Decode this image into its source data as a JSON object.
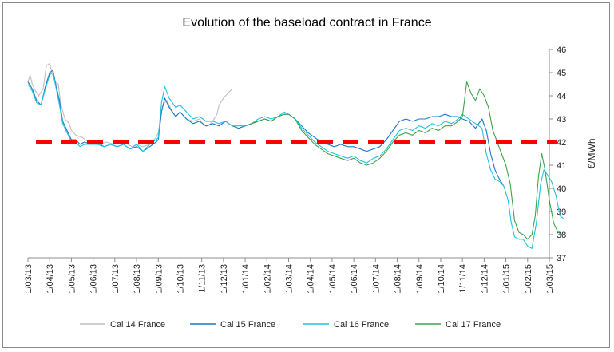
{
  "chart_data": {
    "type": "line",
    "title": "Evolution of the baseload contract in France",
    "ylabel": "€/MWh",
    "ylim": [
      37,
      46
    ],
    "yticks": [
      37,
      38,
      39,
      40,
      41,
      42,
      43,
      44,
      45,
      46
    ],
    "y_axis_side": "right",
    "grid": false,
    "legend_position": "bottom",
    "x_categories": [
      "1/03/13",
      "1/04/13",
      "1/05/13",
      "1/06/13",
      "1/07/13",
      "1/08/13",
      "1/09/13",
      "1/10/13",
      "1/11/13",
      "1/12/13",
      "1/01/14",
      "1/02/14",
      "1/03/14",
      "1/04/14",
      "1/05/14",
      "1/06/14",
      "1/07/14",
      "1/08/14",
      "1/09/14",
      "1/10/14",
      "1/11/14",
      "1/12/14",
      "1/01/15",
      "1/02/15",
      "1/03/15"
    ],
    "reference_line": {
      "y": 42,
      "color": "#ff0000",
      "style": "dashed"
    },
    "series": [
      {
        "name": "Cal 14 France",
        "color": "#bfbfbf",
        "points": [
          [
            0,
            44.6
          ],
          [
            0.1,
            44.9
          ],
          [
            0.2,
            44.5
          ],
          [
            0.35,
            44.2
          ],
          [
            0.5,
            44.0
          ],
          [
            0.7,
            44.3
          ],
          [
            0.85,
            45.3
          ],
          [
            1.0,
            45.4
          ],
          [
            1.1,
            45.0
          ],
          [
            1.25,
            44.6
          ],
          [
            1.4,
            44.5
          ],
          [
            1.5,
            43.7
          ],
          [
            1.7,
            43.0
          ],
          [
            1.9,
            42.8
          ],
          [
            2.0,
            42.5
          ],
          [
            2.2,
            42.3
          ],
          [
            2.5,
            42.2
          ],
          [
            2.8,
            42.0
          ],
          [
            3.0,
            42.1
          ],
          [
            3.3,
            41.9
          ],
          [
            3.6,
            42.0
          ],
          [
            4.0,
            41.9
          ],
          [
            4.4,
            42.0
          ],
          [
            4.8,
            41.8
          ],
          [
            5.0,
            41.9
          ],
          [
            5.3,
            41.8
          ],
          [
            5.6,
            41.9
          ],
          [
            5.9,
            42.2
          ],
          [
            6.0,
            42.4
          ],
          [
            6.2,
            43.6
          ],
          [
            6.4,
            43.8
          ],
          [
            6.6,
            43.4
          ],
          [
            6.8,
            43.1
          ],
          [
            7.0,
            43.3
          ],
          [
            7.3,
            43.0
          ],
          [
            7.6,
            42.9
          ],
          [
            7.9,
            43.0
          ],
          [
            8.1,
            42.7
          ],
          [
            8.3,
            42.7
          ],
          [
            8.5,
            42.9
          ],
          [
            8.7,
            43.2
          ],
          [
            8.8,
            43.6
          ],
          [
            9.0,
            43.9
          ],
          [
            9.2,
            44.1
          ],
          [
            9.4,
            44.3
          ]
        ]
      },
      {
        "name": "Cal 15 France",
        "color": "#1f77c4",
        "points": [
          [
            0,
            44.6
          ],
          [
            0.2,
            44.3
          ],
          [
            0.4,
            43.8
          ],
          [
            0.6,
            43.6
          ],
          [
            0.8,
            44.4
          ],
          [
            1.0,
            45.0
          ],
          [
            1.15,
            45.1
          ],
          [
            1.3,
            44.4
          ],
          [
            1.45,
            43.8
          ],
          [
            1.6,
            42.9
          ],
          [
            1.8,
            42.5
          ],
          [
            2.0,
            42.1
          ],
          [
            2.2,
            42.1
          ],
          [
            2.4,
            41.9
          ],
          [
            2.6,
            42.0
          ],
          [
            2.9,
            41.9
          ],
          [
            3.2,
            42.0
          ],
          [
            3.5,
            41.8
          ],
          [
            3.8,
            41.9
          ],
          [
            4.1,
            41.8
          ],
          [
            4.4,
            41.9
          ],
          [
            4.7,
            41.7
          ],
          [
            5.0,
            41.8
          ],
          [
            5.3,
            41.6
          ],
          [
            5.6,
            41.8
          ],
          [
            5.9,
            42.0
          ],
          [
            6.0,
            42.1
          ],
          [
            6.15,
            43.3
          ],
          [
            6.3,
            43.9
          ],
          [
            6.5,
            43.5
          ],
          [
            6.8,
            43.1
          ],
          [
            7.0,
            43.3
          ],
          [
            7.3,
            43.0
          ],
          [
            7.6,
            42.8
          ],
          [
            7.9,
            42.9
          ],
          [
            8.2,
            42.7
          ],
          [
            8.5,
            42.8
          ],
          [
            8.8,
            42.7
          ],
          [
            9.1,
            42.9
          ],
          [
            9.4,
            42.7
          ],
          [
            9.7,
            42.6
          ],
          [
            10.0,
            42.7
          ],
          [
            10.3,
            42.8
          ],
          [
            10.6,
            42.9
          ],
          [
            10.9,
            43.0
          ],
          [
            11.2,
            42.9
          ],
          [
            11.5,
            43.1
          ],
          [
            11.8,
            43.2
          ],
          [
            12.0,
            43.2
          ],
          [
            12.3,
            43.0
          ],
          [
            12.6,
            42.7
          ],
          [
            12.9,
            42.4
          ],
          [
            13.2,
            42.2
          ],
          [
            13.5,
            42.0
          ],
          [
            13.8,
            41.9
          ],
          [
            14.1,
            41.8
          ],
          [
            14.4,
            41.9
          ],
          [
            14.7,
            41.8
          ],
          [
            15.0,
            41.8
          ],
          [
            15.3,
            41.7
          ],
          [
            15.6,
            41.6
          ],
          [
            15.9,
            41.7
          ],
          [
            16.2,
            41.8
          ],
          [
            16.5,
            42.1
          ],
          [
            16.8,
            42.5
          ],
          [
            17.1,
            42.9
          ],
          [
            17.4,
            43.0
          ],
          [
            17.7,
            42.9
          ],
          [
            18.0,
            43.0
          ],
          [
            18.3,
            43.0
          ],
          [
            18.6,
            43.1
          ],
          [
            18.9,
            43.1
          ],
          [
            19.2,
            43.2
          ],
          [
            19.5,
            43.1
          ],
          [
            19.8,
            43.1
          ],
          [
            20.0,
            43.0
          ],
          [
            20.3,
            42.9
          ],
          [
            20.6,
            42.6
          ],
          [
            20.9,
            43.0
          ],
          [
            21.1,
            42.5
          ],
          [
            21.3,
            41.5
          ],
          [
            21.5,
            40.8
          ],
          [
            21.7,
            40.4
          ],
          [
            21.9,
            40.1
          ]
        ]
      },
      {
        "name": "Cal 16 France",
        "color": "#1fc3e0",
        "points": [
          [
            0,
            44.5
          ],
          [
            0.2,
            44.2
          ],
          [
            0.4,
            43.7
          ],
          [
            0.6,
            43.6
          ],
          [
            0.8,
            44.3
          ],
          [
            1.0,
            44.9
          ],
          [
            1.15,
            45.0
          ],
          [
            1.3,
            44.3
          ],
          [
            1.45,
            43.6
          ],
          [
            1.6,
            42.8
          ],
          [
            1.8,
            42.4
          ],
          [
            2.0,
            42.0
          ],
          [
            2.2,
            42.0
          ],
          [
            2.4,
            41.8
          ],
          [
            2.6,
            41.9
          ],
          [
            2.9,
            41.9
          ],
          [
            3.2,
            41.9
          ],
          [
            3.5,
            41.8
          ],
          [
            3.8,
            41.9
          ],
          [
            4.1,
            41.8
          ],
          [
            4.4,
            41.9
          ],
          [
            4.7,
            41.7
          ],
          [
            5.0,
            41.9
          ],
          [
            5.3,
            41.6
          ],
          [
            5.6,
            41.9
          ],
          [
            5.9,
            42.1
          ],
          [
            6.0,
            42.2
          ],
          [
            6.15,
            43.7
          ],
          [
            6.3,
            44.4
          ],
          [
            6.5,
            43.9
          ],
          [
            6.8,
            43.5
          ],
          [
            7.0,
            43.6
          ],
          [
            7.3,
            43.3
          ],
          [
            7.6,
            43.0
          ],
          [
            7.9,
            43.1
          ],
          [
            8.2,
            42.9
          ],
          [
            8.5,
            42.9
          ],
          [
            8.8,
            42.8
          ],
          [
            9.1,
            42.9
          ],
          [
            9.4,
            42.7
          ],
          [
            9.7,
            42.7
          ],
          [
            10.0,
            42.7
          ],
          [
            10.3,
            42.8
          ],
          [
            10.6,
            43.0
          ],
          [
            10.9,
            43.1
          ],
          [
            11.2,
            43.0
          ],
          [
            11.5,
            43.1
          ],
          [
            11.8,
            43.3
          ],
          [
            12.0,
            43.2
          ],
          [
            12.3,
            43.0
          ],
          [
            12.6,
            42.6
          ],
          [
            12.9,
            42.3
          ],
          [
            13.2,
            42.0
          ],
          [
            13.5,
            41.8
          ],
          [
            13.8,
            41.6
          ],
          [
            14.1,
            41.5
          ],
          [
            14.4,
            41.4
          ],
          [
            14.7,
            41.3
          ],
          [
            15.0,
            41.4
          ],
          [
            15.3,
            41.2
          ],
          [
            15.6,
            41.1
          ],
          [
            15.9,
            41.3
          ],
          [
            16.2,
            41.4
          ],
          [
            16.5,
            41.7
          ],
          [
            16.8,
            42.1
          ],
          [
            17.1,
            42.5
          ],
          [
            17.4,
            42.6
          ],
          [
            17.7,
            42.5
          ],
          [
            18.0,
            42.7
          ],
          [
            18.3,
            42.6
          ],
          [
            18.6,
            42.8
          ],
          [
            18.9,
            42.7
          ],
          [
            19.2,
            42.9
          ],
          [
            19.5,
            42.8
          ],
          [
            19.8,
            43.0
          ],
          [
            20.0,
            43.2
          ],
          [
            20.3,
            43.0
          ],
          [
            20.6,
            42.8
          ],
          [
            20.9,
            42.6
          ],
          [
            21.1,
            41.5
          ],
          [
            21.3,
            40.8
          ],
          [
            21.5,
            40.4
          ],
          [
            21.7,
            40.3
          ],
          [
            21.9,
            40.1
          ],
          [
            22.1,
            39.5
          ],
          [
            22.25,
            38.5
          ],
          [
            22.4,
            37.9
          ],
          [
            22.6,
            37.8
          ],
          [
            22.8,
            37.8
          ],
          [
            23.0,
            37.5
          ],
          [
            23.2,
            37.4
          ],
          [
            23.4,
            38.5
          ],
          [
            23.6,
            40.2
          ],
          [
            23.75,
            40.8
          ],
          [
            23.9,
            40.6
          ],
          [
            24.1,
            40.3
          ],
          [
            24.3,
            39.7
          ],
          [
            24.5,
            38.8
          ],
          [
            24.65,
            38.7
          ]
        ]
      },
      {
        "name": "Cal 17 France",
        "color": "#3fa34d",
        "points": [
          [
            10.0,
            42.7
          ],
          [
            10.3,
            42.8
          ],
          [
            10.6,
            42.9
          ],
          [
            10.9,
            43.0
          ],
          [
            11.2,
            42.9
          ],
          [
            11.5,
            43.1
          ],
          [
            11.8,
            43.2
          ],
          [
            12.0,
            43.2
          ],
          [
            12.3,
            43.0
          ],
          [
            12.6,
            42.5
          ],
          [
            12.9,
            42.2
          ],
          [
            13.2,
            41.9
          ],
          [
            13.5,
            41.7
          ],
          [
            13.8,
            41.5
          ],
          [
            14.1,
            41.4
          ],
          [
            14.4,
            41.3
          ],
          [
            14.7,
            41.2
          ],
          [
            15.0,
            41.3
          ],
          [
            15.3,
            41.1
          ],
          [
            15.6,
            41.0
          ],
          [
            15.9,
            41.1
          ],
          [
            16.2,
            41.3
          ],
          [
            16.5,
            41.6
          ],
          [
            16.8,
            42.0
          ],
          [
            17.1,
            42.3
          ],
          [
            17.4,
            42.4
          ],
          [
            17.7,
            42.3
          ],
          [
            18.0,
            42.5
          ],
          [
            18.3,
            42.4
          ],
          [
            18.6,
            42.6
          ],
          [
            18.9,
            42.5
          ],
          [
            19.2,
            42.7
          ],
          [
            19.5,
            42.7
          ],
          [
            19.8,
            42.9
          ],
          [
            20.0,
            43.1
          ],
          [
            20.2,
            44.6
          ],
          [
            20.4,
            44.1
          ],
          [
            20.6,
            43.8
          ],
          [
            20.8,
            44.3
          ],
          [
            21.0,
            44.0
          ],
          [
            21.2,
            43.5
          ],
          [
            21.4,
            42.5
          ],
          [
            21.6,
            42.0
          ],
          [
            21.8,
            41.5
          ],
          [
            22.0,
            41.0
          ],
          [
            22.2,
            40.2
          ],
          [
            22.4,
            38.6
          ],
          [
            22.6,
            38.1
          ],
          [
            22.8,
            38.0
          ],
          [
            23.0,
            37.8
          ],
          [
            23.2,
            38.0
          ],
          [
            23.35,
            38.8
          ],
          [
            23.5,
            40.5
          ],
          [
            23.65,
            41.5
          ],
          [
            23.8,
            40.8
          ],
          [
            24.0,
            39.5
          ],
          [
            24.2,
            38.5
          ],
          [
            24.4,
            38.1
          ],
          [
            24.6,
            38.0
          ]
        ]
      }
    ]
  }
}
